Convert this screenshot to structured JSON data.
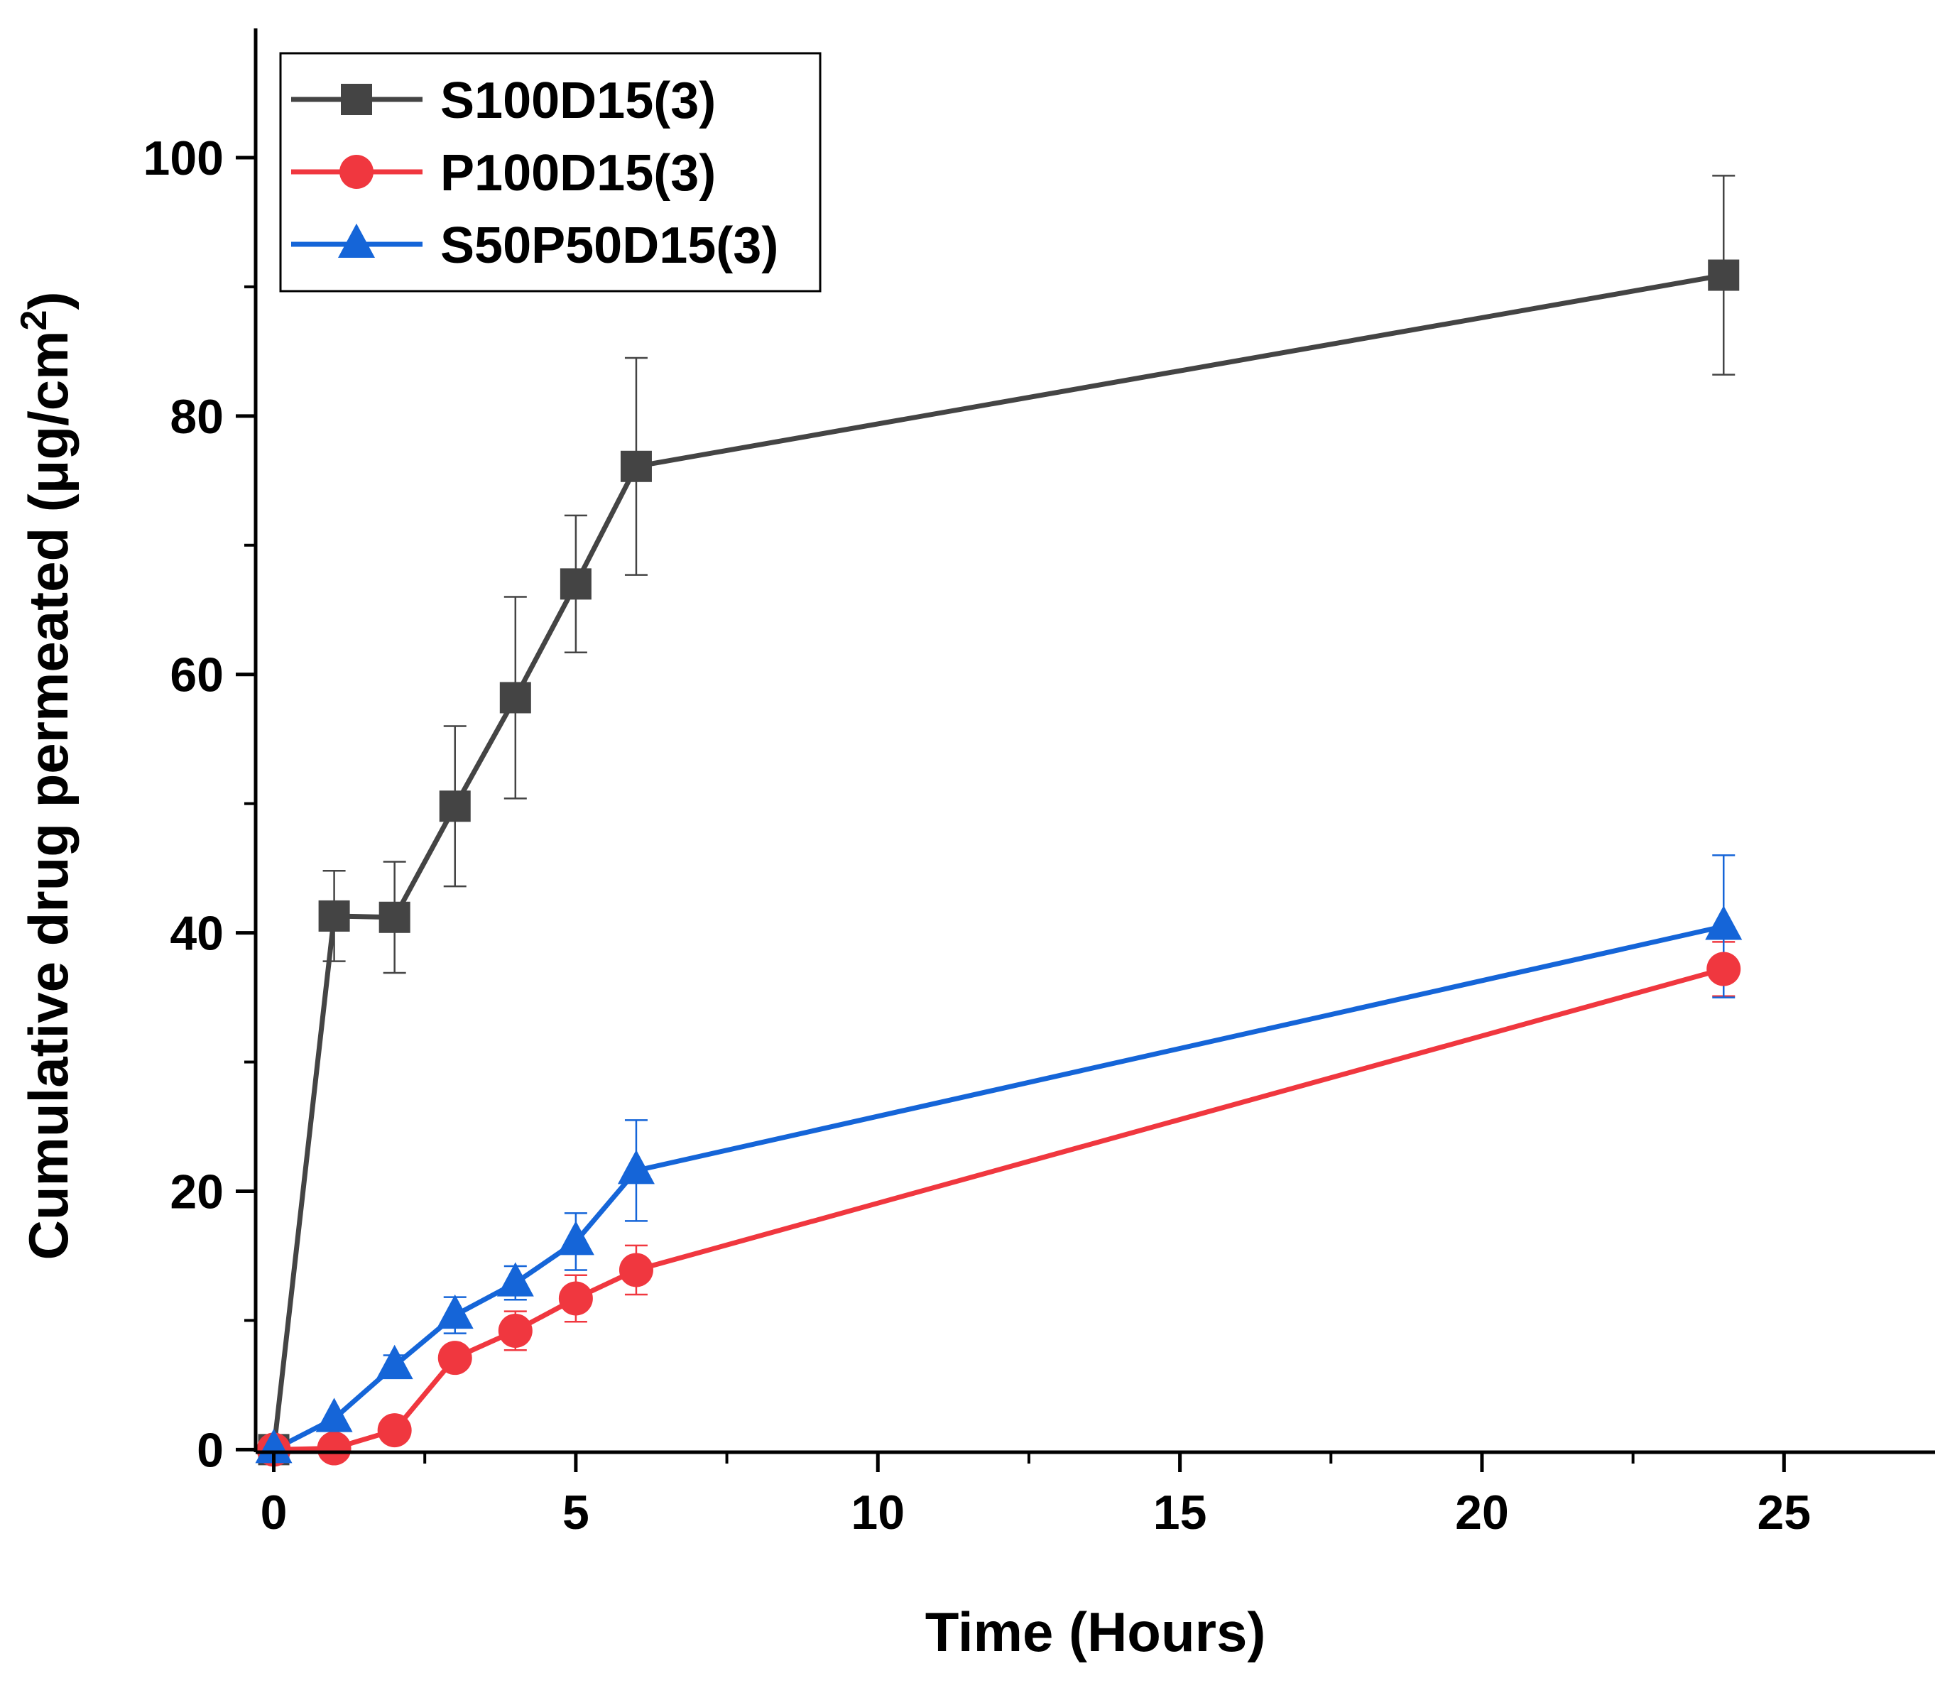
{
  "chart_data": {
    "type": "line",
    "title": "",
    "xlabel": "Time (Hours)",
    "ylabel": "Cumulative drug permeated (μg/cm",
    "ylabel_superscript": "2",
    "ylabel_close": ")",
    "xlim": [
      -0.3,
      27.5
    ],
    "ylim": [
      -0.2,
      110
    ],
    "x_ticks": [
      0,
      5,
      10,
      15,
      20,
      25
    ],
    "x_tick_labels": [
      "0",
      "5",
      "10",
      "15",
      "20",
      "25"
    ],
    "x_minor_ticks": [
      2.5,
      7.5,
      12.5,
      17.5,
      22.5
    ],
    "y_ticks": [
      0,
      20,
      40,
      60,
      80,
      100
    ],
    "y_tick_labels": [
      "0",
      "20",
      "40",
      "60",
      "80",
      "100"
    ],
    "y_minor_ticks": [
      10,
      30,
      50,
      70,
      90
    ],
    "grid": false,
    "legend_position": "top-left",
    "series": [
      {
        "name": "S100D15(3)",
        "color": "#444444",
        "marker": "square",
        "x": [
          0,
          1,
          2,
          3,
          4,
          5,
          6,
          24
        ],
        "y": [
          0,
          41.3,
          41.2,
          49.8,
          58.2,
          67.0,
          76.1,
          90.9
        ],
        "err": [
          0,
          3.5,
          4.3,
          6.2,
          7.8,
          5.3,
          8.4,
          7.7
        ]
      },
      {
        "name": "P100D15(3)",
        "color": "#f0373f",
        "marker": "circle",
        "x": [
          0,
          1,
          2,
          3,
          4,
          5,
          6,
          24
        ],
        "y": [
          0,
          0.1,
          1.5,
          7.1,
          9.2,
          11.7,
          13.9,
          37.2
        ],
        "err": [
          0,
          0,
          0,
          0.9,
          1.5,
          1.8,
          1.9,
          2.1
        ]
      },
      {
        "name": "S50P50D15(3)",
        "color": "#1565d8",
        "marker": "triangle",
        "x": [
          0,
          1,
          2,
          3,
          4,
          5,
          6,
          24
        ],
        "y": [
          0,
          2.4,
          6.5,
          10.4,
          12.9,
          16.1,
          21.6,
          40.5
        ],
        "err": [
          0,
          0,
          0.8,
          1.4,
          1.3,
          2.2,
          3.9,
          5.5
        ]
      }
    ]
  }
}
